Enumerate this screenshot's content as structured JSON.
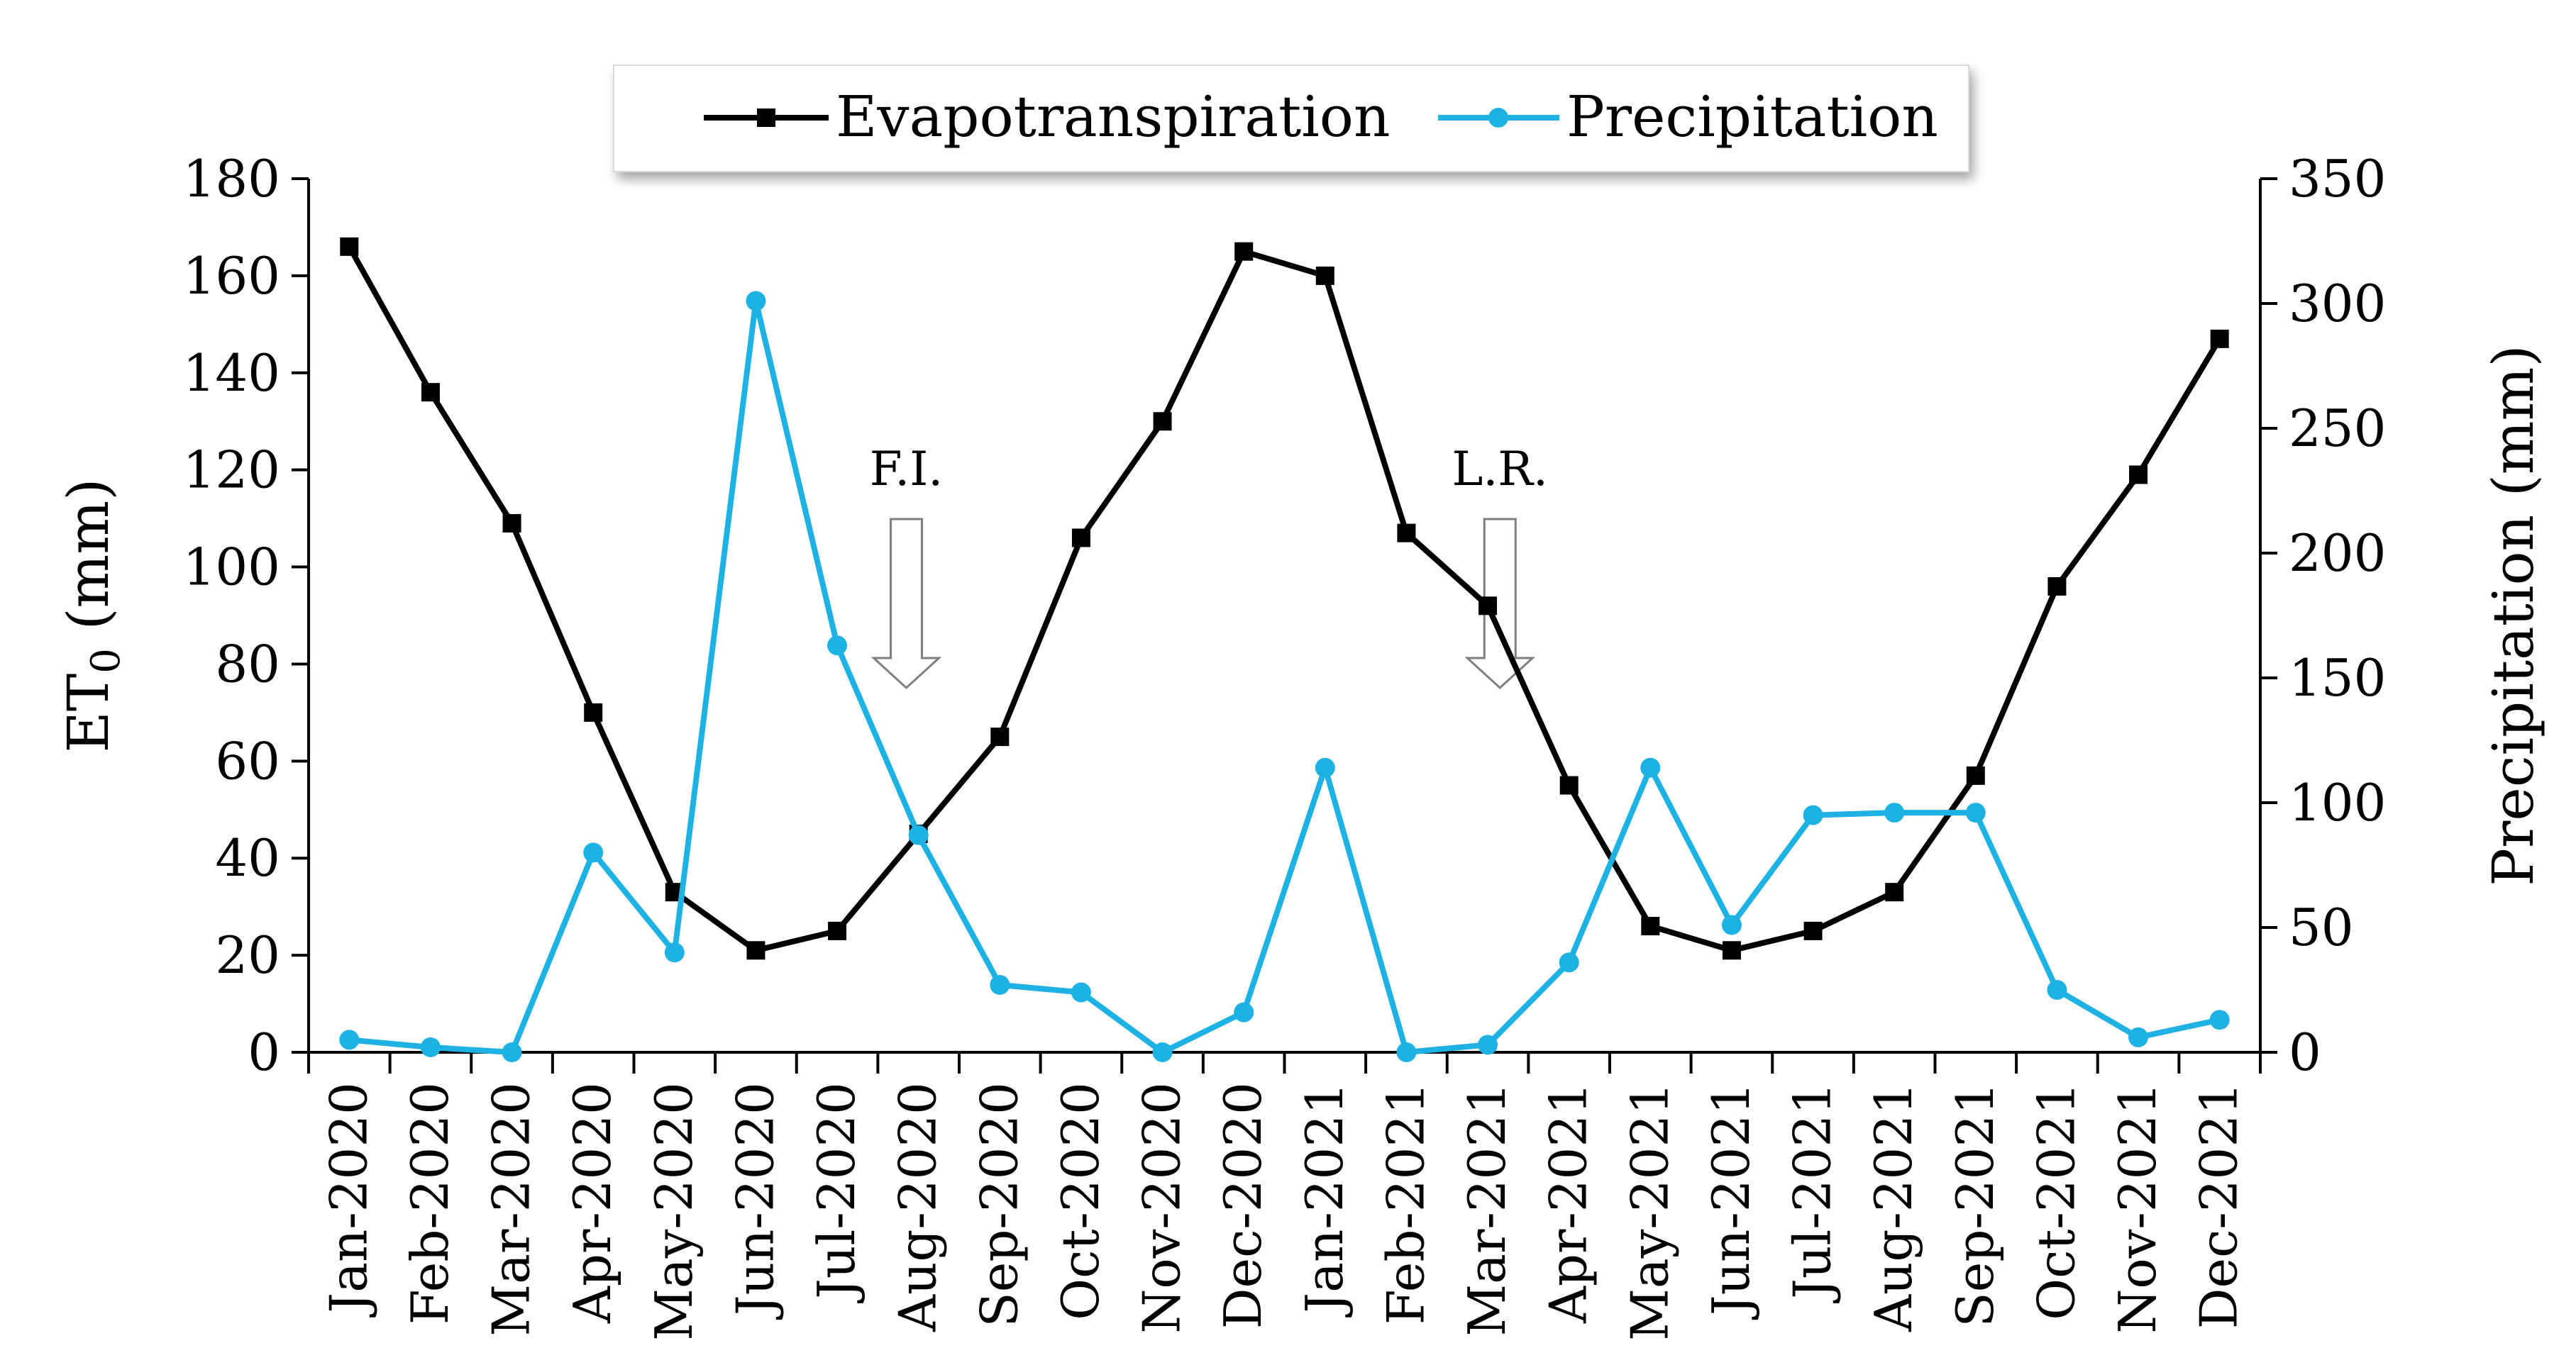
{
  "chart_data": {
    "type": "line",
    "categories": [
      "Jan-2020",
      "Feb-2020",
      "Mar-2020",
      "Apr-2020",
      "May-2020",
      "Jun-2020",
      "Jul-2020",
      "Aug-2020",
      "Sep-2020",
      "Oct-2020",
      "Nov-2020",
      "Dec-2020",
      "Jan-2021",
      "Feb-2021",
      "Mar-2021",
      "Apr-2021",
      "May-2021",
      "Jun-2021",
      "Jul-2021",
      "Aug-2021",
      "Sep-2021",
      "Oct-2021",
      "Nov-2021",
      "Dec-2021"
    ],
    "series": [
      {
        "name": "Evapotranspiration",
        "axis": "left",
        "color": "#000000",
        "marker": "square",
        "values": [
          166,
          136,
          109,
          70,
          33,
          21,
          25,
          45,
          65,
          106,
          130,
          165,
          160,
          107,
          92,
          55,
          26,
          21,
          25,
          33,
          57,
          96,
          119,
          147
        ]
      },
      {
        "name": "Precipitation",
        "axis": "right",
        "color": "#1DB1E4",
        "marker": "circle",
        "values": [
          5,
          2,
          0,
          80,
          40,
          301,
          163,
          87,
          27,
          24,
          0,
          16,
          114,
          0,
          3,
          36,
          114,
          51,
          95,
          96,
          96,
          25,
          6,
          13
        ]
      }
    ],
    "y_left": {
      "label_main": "ET",
      "label_sub": "0",
      "label_rest": " (mm)",
      "ylim": [
        0,
        180
      ],
      "ticks": [
        "0",
        "20",
        "40",
        "60",
        "80",
        "100",
        "120",
        "140",
        "160",
        "180"
      ]
    },
    "y_right": {
      "label": "Precipitation (mm)",
      "ylim": [
        0,
        350
      ],
      "ticks": [
        "0",
        "50",
        "100",
        "150",
        "200",
        "250",
        "300",
        "350"
      ]
    },
    "xlabel": "",
    "title": "",
    "grid": false,
    "legend": {
      "position": "top-center",
      "entries": [
        "Evapotranspiration",
        "Precipitation"
      ]
    },
    "annotations": [
      {
        "text": "F.I.",
        "category": "Aug-2020",
        "offset": 0.35,
        "shape": "down-arrow"
      },
      {
        "text": "L.R.",
        "category": "Mar-2021",
        "offset": 0.65,
        "shape": "down-arrow"
      }
    ]
  }
}
